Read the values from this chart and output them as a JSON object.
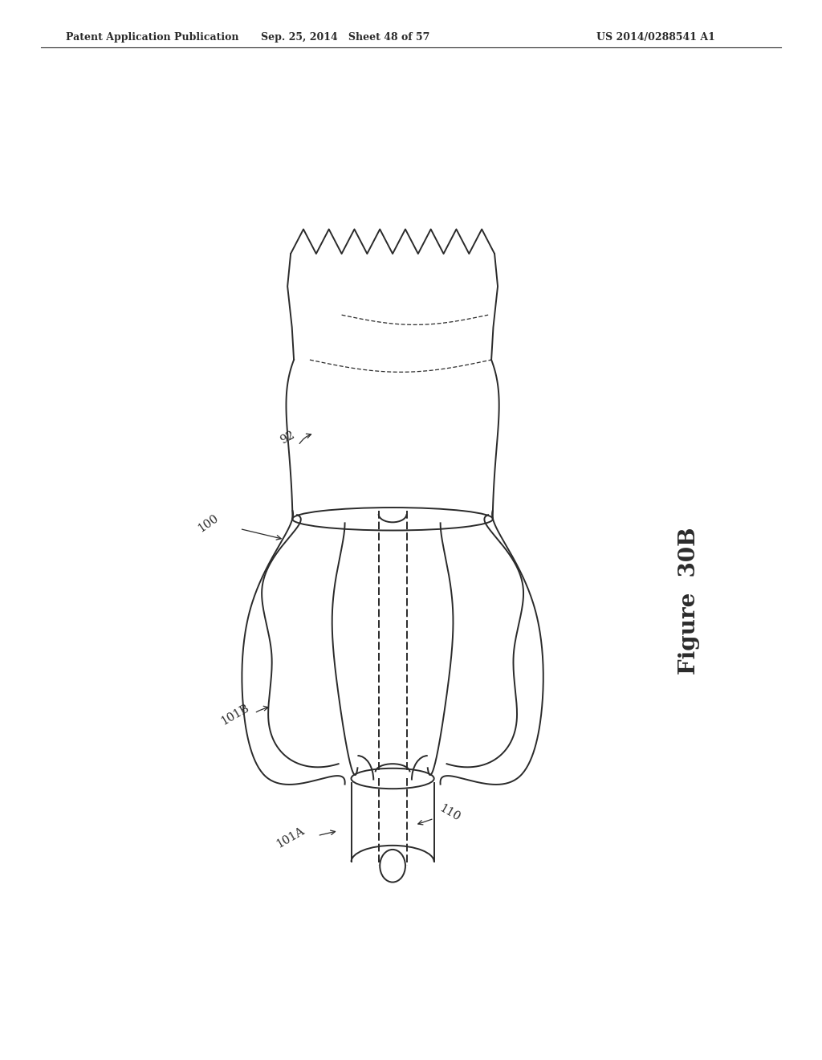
{
  "header_left": "Patent Application Publication",
  "header_mid": "Sep. 25, 2014   Sheet 48 of 57",
  "header_right": "US 2014/0288541 A1",
  "figure_label": "Figure  30B",
  "bg_color": "#ffffff",
  "line_color": "#2a2a2a"
}
